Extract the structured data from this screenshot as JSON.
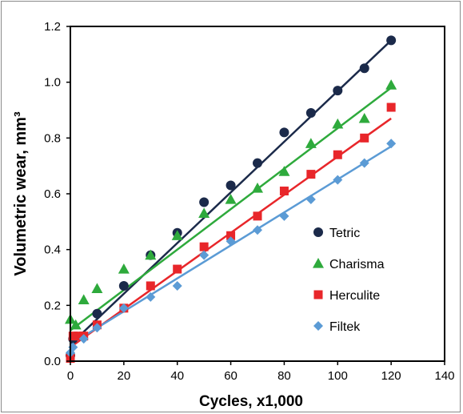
{
  "chart_data": {
    "type": "scatter",
    "title": "",
    "xlabel": "Cycles, x1,000",
    "ylabel": "Volumetric wear, mm³",
    "xlim": [
      0,
      140
    ],
    "ylim": [
      0,
      1.2
    ],
    "xticks": [
      0,
      20,
      40,
      60,
      80,
      100,
      120,
      140
    ],
    "yticks": [
      0.0,
      0.2,
      0.4,
      0.6,
      0.8,
      1.0,
      1.2
    ],
    "xtick_labels": [
      "0",
      "20",
      "40",
      "60",
      "80",
      "100",
      "120",
      "140"
    ],
    "ytick_labels": [
      "0.0",
      "0.2",
      "0.4",
      "0.6",
      "0.8",
      "1.0",
      "1.2"
    ],
    "grid": false,
    "legend_position": "right",
    "series": [
      {
        "name": "Tetric",
        "marker": "circle",
        "color": "#1b2a4a",
        "x": [
          0,
          1,
          10,
          20,
          30,
          40,
          50,
          60,
          70,
          80,
          90,
          100,
          110,
          120
        ],
        "y": [
          0.02,
          0.08,
          0.17,
          0.27,
          0.38,
          0.46,
          0.57,
          0.63,
          0.71,
          0.82,
          0.89,
          0.97,
          1.05,
          1.15
        ],
        "fit": [
          [
            0,
            0.06
          ],
          [
            120,
            1.15
          ]
        ]
      },
      {
        "name": "Charisma",
        "marker": "triangle",
        "color": "#2eaa3c",
        "x": [
          0,
          2,
          5,
          10,
          20,
          30,
          40,
          50,
          60,
          70,
          80,
          90,
          100,
          110,
          120
        ],
        "y": [
          0.15,
          0.13,
          0.22,
          0.26,
          0.33,
          0.38,
          0.45,
          0.53,
          0.58,
          0.62,
          0.68,
          0.78,
          0.85,
          0.87,
          0.99
        ],
        "fit": [
          [
            0,
            0.11
          ],
          [
            120,
            0.98
          ]
        ]
      },
      {
        "name": "Herculite",
        "marker": "square",
        "color": "#e8262a",
        "x": [
          0,
          1,
          3,
          5,
          10,
          20,
          30,
          40,
          50,
          60,
          70,
          80,
          90,
          100,
          110,
          120
        ],
        "y": [
          0.01,
          0.09,
          0.09,
          0.09,
          0.13,
          0.19,
          0.27,
          0.33,
          0.41,
          0.45,
          0.52,
          0.61,
          0.67,
          0.74,
          0.8,
          0.91
        ],
        "fit": [
          [
            0,
            0.05
          ],
          [
            120,
            0.87
          ]
        ]
      },
      {
        "name": "Filtek",
        "marker": "diamond",
        "color": "#5b9bd5",
        "x": [
          0,
          1,
          5,
          10,
          20,
          30,
          40,
          50,
          60,
          70,
          80,
          90,
          100,
          110,
          120
        ],
        "y": [
          0.03,
          0.05,
          0.08,
          0.12,
          0.19,
          0.23,
          0.27,
          0.38,
          0.43,
          0.47,
          0.52,
          0.58,
          0.65,
          0.71,
          0.78
        ],
        "fit": [
          [
            0,
            0.06
          ],
          [
            120,
            0.77
          ]
        ]
      }
    ]
  }
}
